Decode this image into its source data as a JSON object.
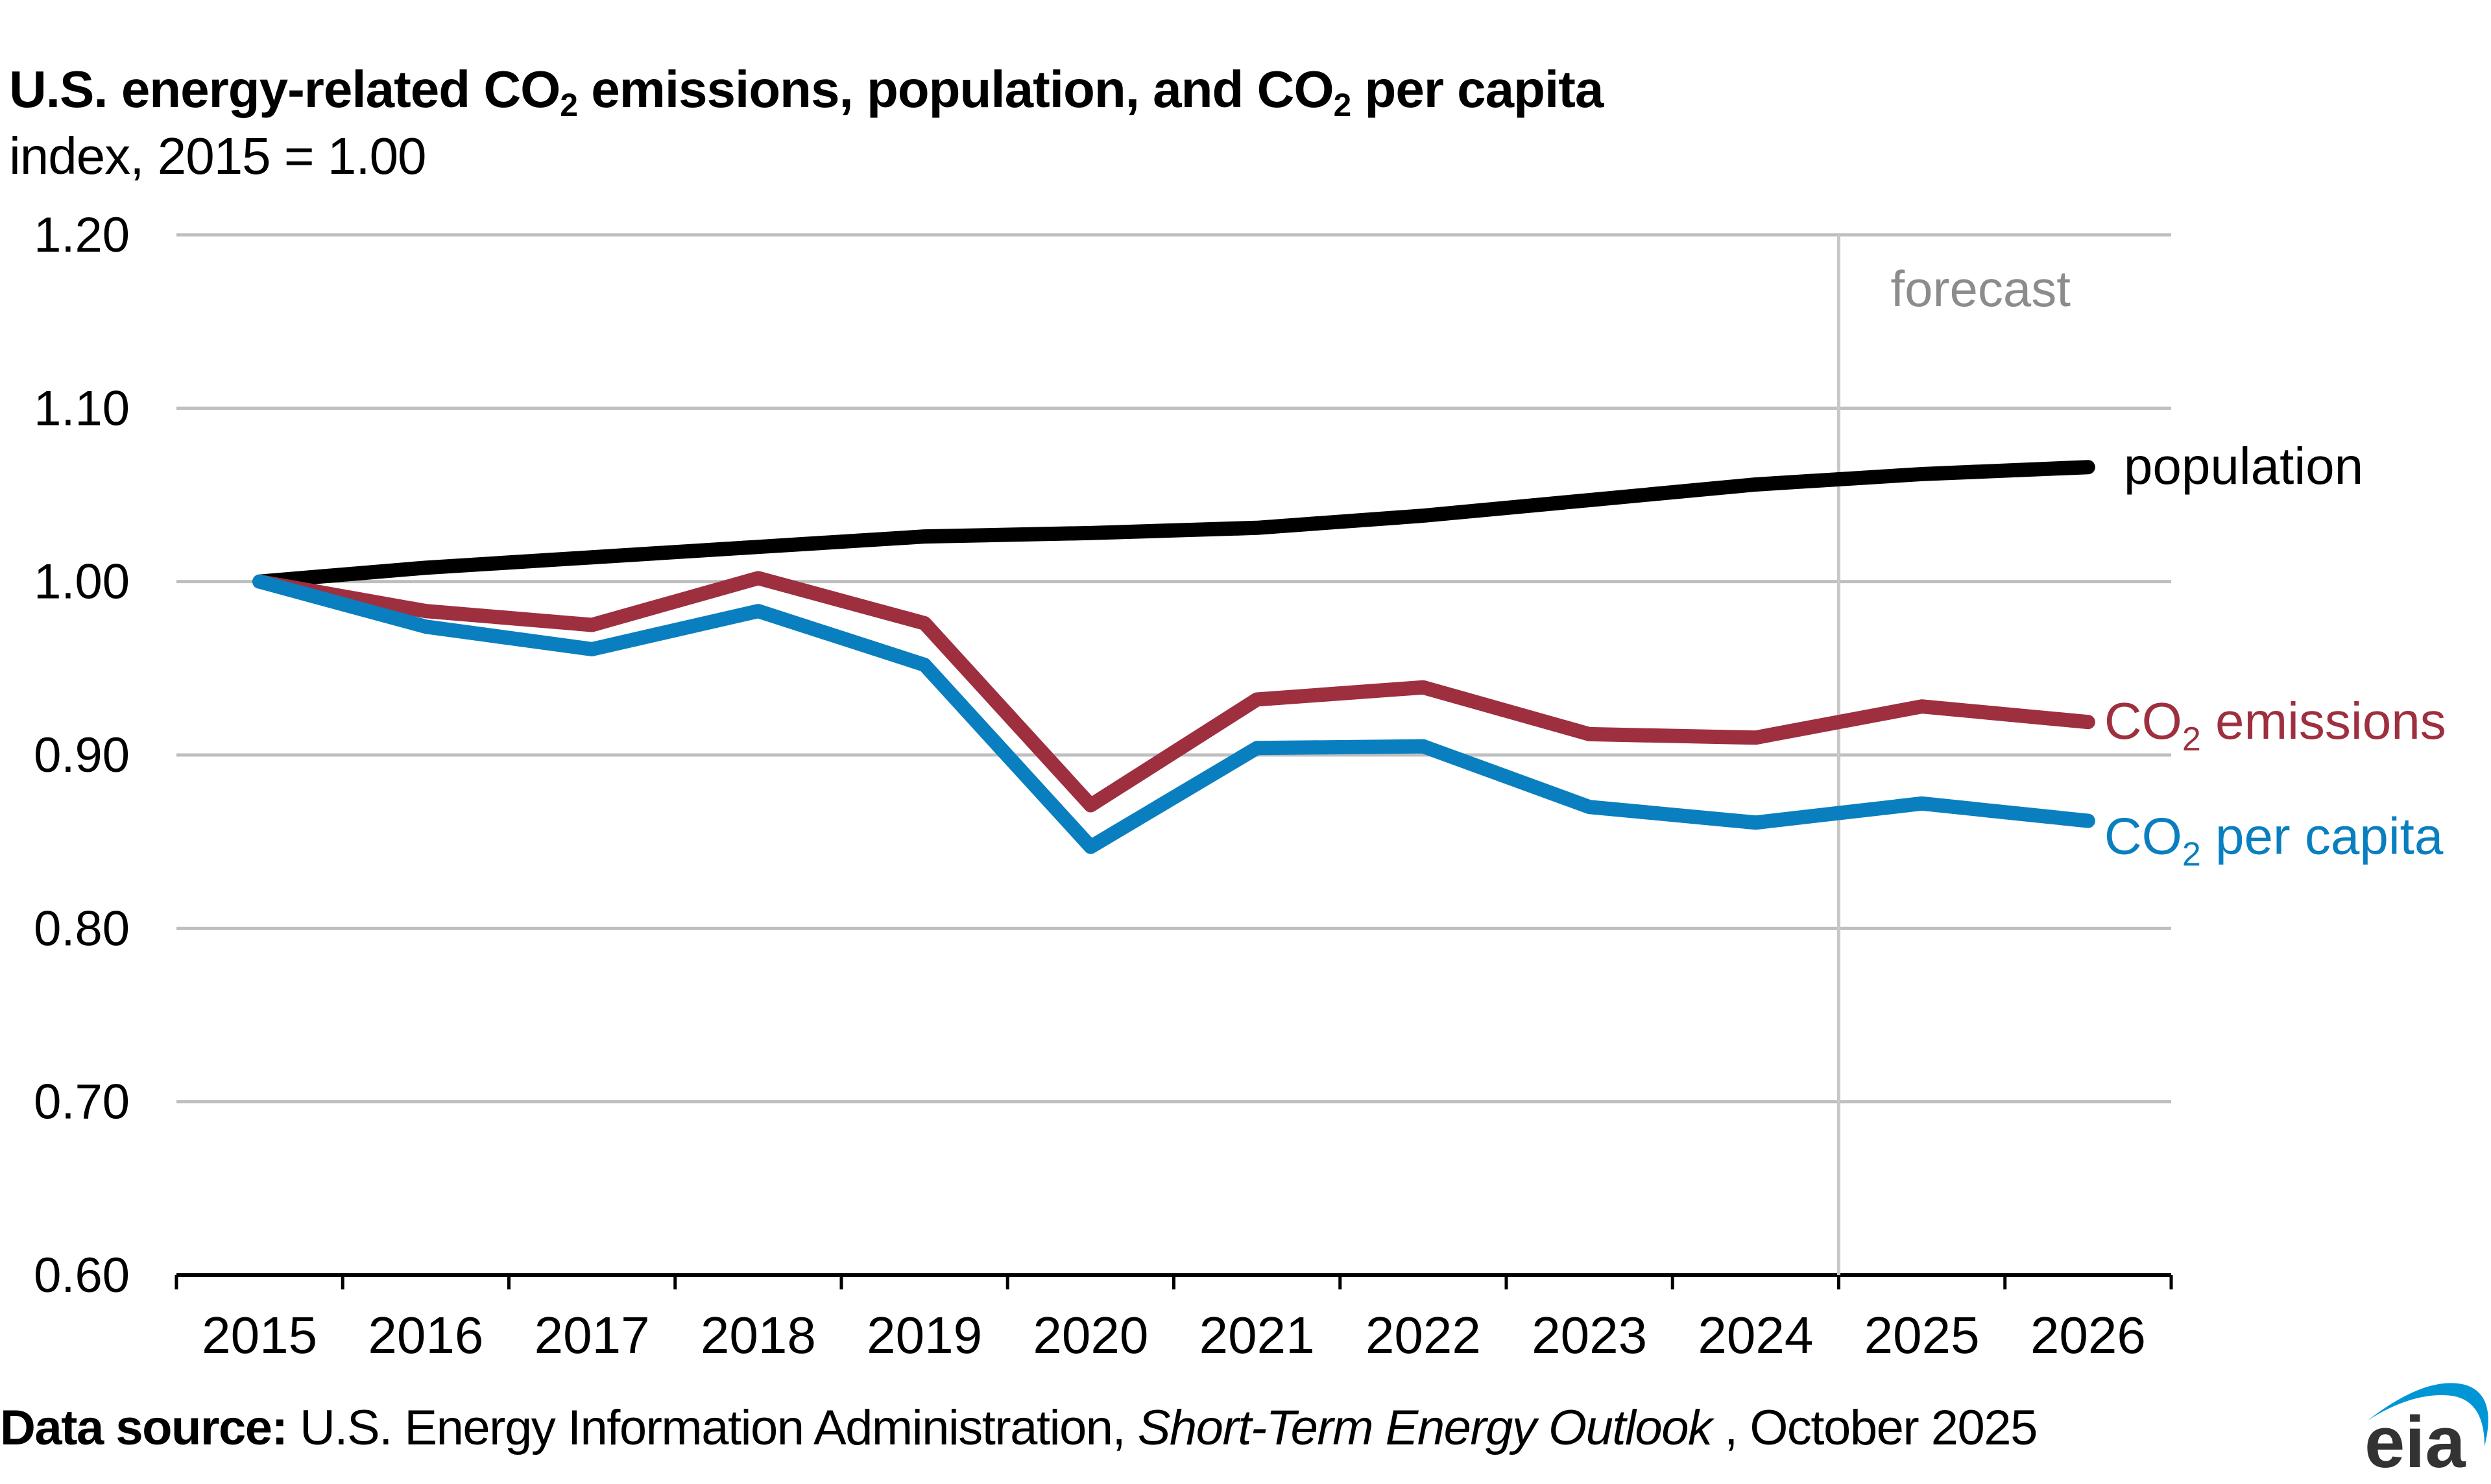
{
  "title": {
    "part1": "U.S. energy-related CO",
    "sub1": "2",
    "part2": " emissions, population, and CO",
    "sub2": "2",
    "part3": " per capita"
  },
  "subtitle": "index, 2015 = 1.00",
  "footer": {
    "label": "Data source:",
    "source": " U.S. Energy Information Administration, ",
    "publication": "Short-Term Energy Outlook",
    "date": " , October 2025"
  },
  "logo": {
    "text": "eia",
    "arc_color": "#0096D6",
    "text_color": "#333333"
  },
  "chart_data": {
    "type": "line",
    "title": "U.S. energy-related CO2 emissions, population, and CO2 per capita",
    "ylabel": "index, 2015 = 1.00",
    "xlabel": "",
    "ylim": [
      0.6,
      1.2
    ],
    "yticks": [
      "1.20",
      "1.10",
      "1.00",
      "0.90",
      "0.80",
      "0.70",
      "0.60"
    ],
    "ytick_values": [
      1.2,
      1.1,
      1.0,
      0.9,
      0.8,
      0.7,
      0.6
    ],
    "categories": [
      "2015",
      "2016",
      "2017",
      "2018",
      "2019",
      "2020",
      "2021",
      "2022",
      "2023",
      "2024",
      "2025",
      "2026"
    ],
    "grid": true,
    "forecast": {
      "label": "forecast",
      "starts_after": "2024"
    },
    "series": [
      {
        "name": "population",
        "label_main": "population",
        "label_sub": "",
        "label_tail": "",
        "color": "#000000",
        "values": [
          1.0,
          1.008,
          1.014,
          1.02,
          1.026,
          1.028,
          1.031,
          1.038,
          1.047,
          1.056,
          1.062,
          1.066
        ]
      },
      {
        "name": "CO2 emissions",
        "label_main": "CO",
        "label_sub": "2",
        "label_tail": " emissions",
        "color": "#9E2F3F",
        "values": [
          1.0,
          0.983,
          0.975,
          1.002,
          0.976,
          0.871,
          0.932,
          0.939,
          0.912,
          0.91,
          0.928,
          0.919
        ]
      },
      {
        "name": "CO2 per capita",
        "label_main": "CO",
        "label_sub": "2",
        "label_tail": " per capita",
        "color": "#0A7FBF",
        "values": [
          1.0,
          0.974,
          0.961,
          0.983,
          0.952,
          0.847,
          0.904,
          0.905,
          0.87,
          0.861,
          0.872,
          0.862
        ]
      }
    ]
  }
}
